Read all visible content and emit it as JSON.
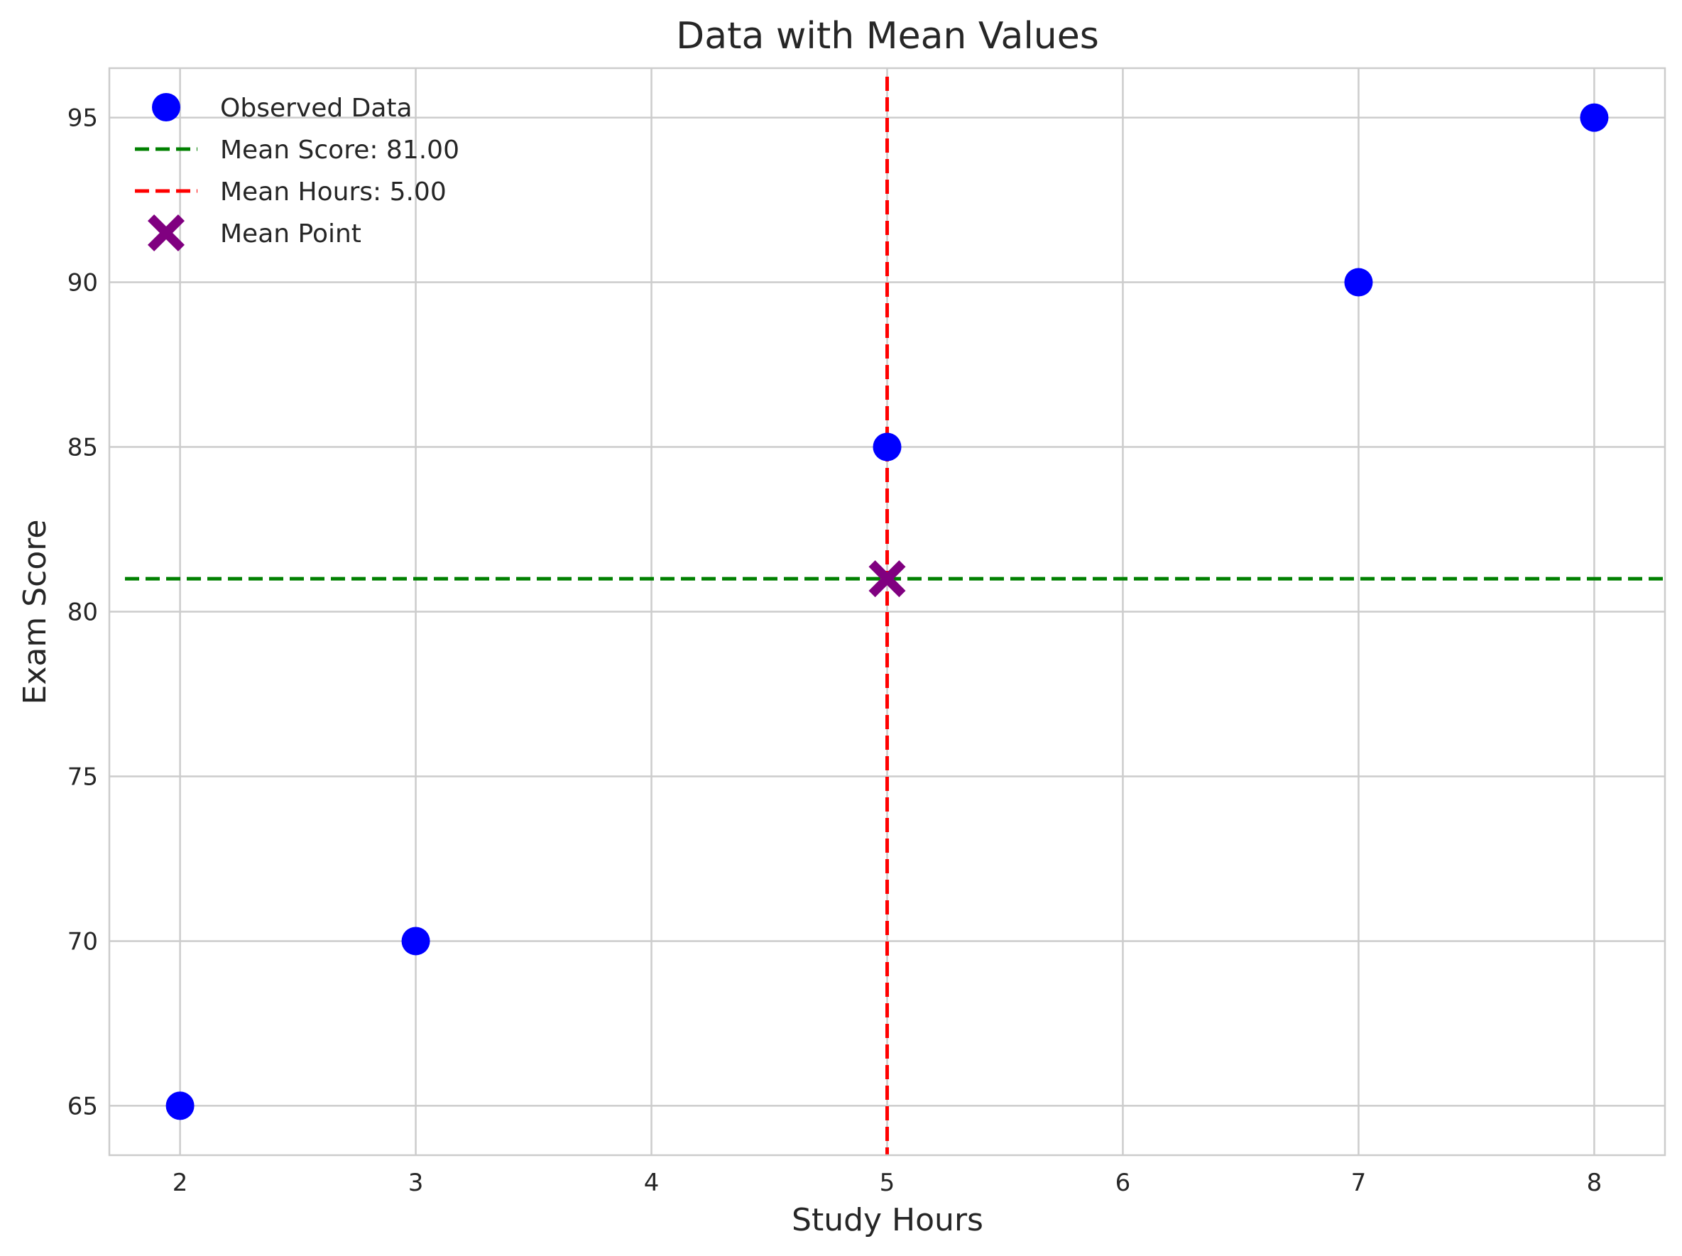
{
  "chart_data": {
    "type": "scatter",
    "title": "Data with Mean Values",
    "xlabel": "Study Hours",
    "ylabel": "Exam Score",
    "xlim": [
      1.7,
      8.3
    ],
    "ylim": [
      63.5,
      96.5
    ],
    "xticks": [
      2,
      3,
      4,
      5,
      6,
      7,
      8
    ],
    "yticks": [
      65,
      70,
      75,
      80,
      85,
      90,
      95
    ],
    "grid": true,
    "legend_position": "upper-left",
    "series": [
      {
        "name": "Observed Data",
        "marker": "circle",
        "color": "#0000ff",
        "points": [
          {
            "x": 2,
            "y": 65
          },
          {
            "x": 3,
            "y": 70
          },
          {
            "x": 5,
            "y": 85
          },
          {
            "x": 7,
            "y": 90
          },
          {
            "x": 8,
            "y": 95
          }
        ]
      }
    ],
    "reference_lines": [
      {
        "name": "Mean Score: 81.00",
        "orientation": "horizontal",
        "value": 81,
        "color": "#008000",
        "style": "dashed"
      },
      {
        "name": "Mean Hours: 5.00",
        "orientation": "vertical",
        "value": 5,
        "color": "#ff0000",
        "style": "dashed"
      }
    ],
    "mean_point": {
      "name": "Mean Point",
      "x": 5,
      "y": 81,
      "marker": "X",
      "color": "#800080"
    }
  }
}
